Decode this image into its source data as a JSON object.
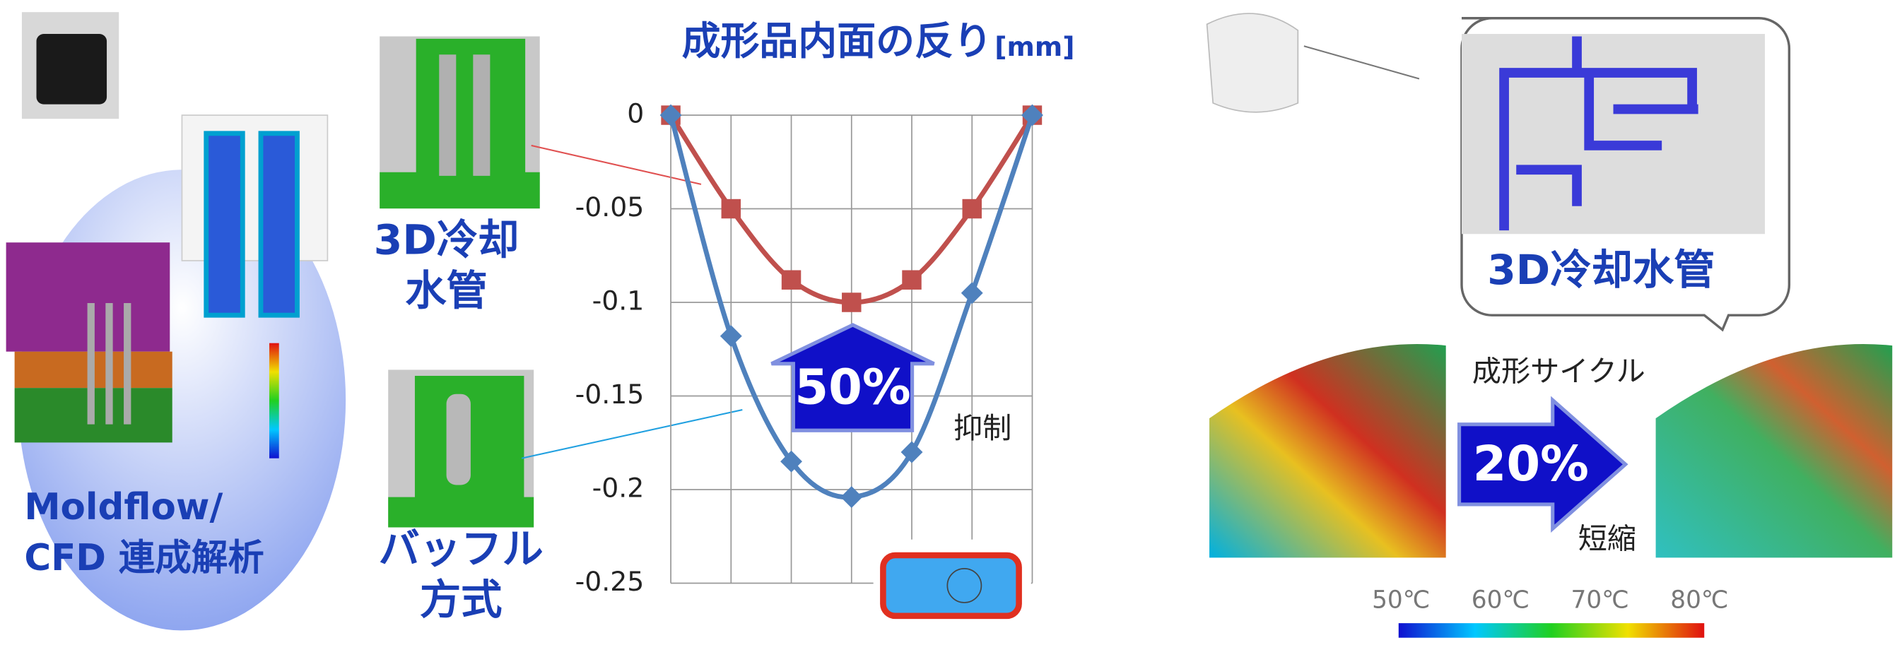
{
  "chart_data": {
    "type": "line",
    "title": "成形品内面の反り",
    "unit": "[mm]",
    "categories": [
      null,
      null,
      null,
      null,
      null,
      null,
      null
    ],
    "series": [
      {
        "name": null,
        "color": "#c0504d",
        "marker": "square",
        "values": [
          0,
          -0.05,
          -0.088,
          -0.1,
          -0.088,
          -0.05,
          0
        ]
      },
      {
        "name": null,
        "color": "#4f81bd",
        "marker": "diamond",
        "values": [
          0,
          -0.118,
          -0.185,
          -0.204,
          -0.18,
          -0.095,
          0
        ]
      }
    ],
    "ylim": [
      -0.25,
      0
    ],
    "yticks": [
      0,
      -0.05,
      -0.1,
      -0.15,
      -0.2,
      -0.25
    ],
    "grid": true,
    "annotations": {
      "arrow": "50%",
      "note": "抑制"
    }
  },
  "slide": {
    "left_label": [
      "Moldflow/",
      "CFD 連成解析"
    ],
    "cooling_label": [
      "3D冷却",
      "水管"
    ],
    "baffle_label": [
      "バッフル",
      "方式"
    ],
    "bubble_label": "3D冷却水管",
    "cycle_label": "成形サイクル",
    "cycle_arrow": "20%",
    "cycle_note": "短縮",
    "temperature_labels": [
      "50℃",
      "60℃",
      "70℃",
      "80℃"
    ]
  }
}
